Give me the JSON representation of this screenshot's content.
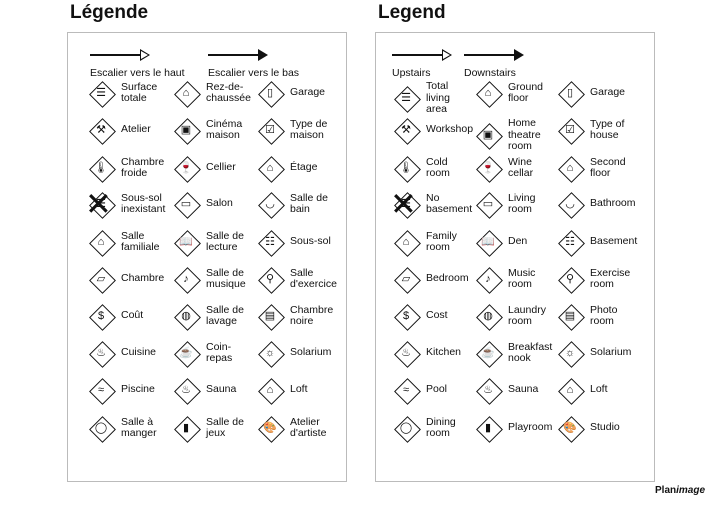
{
  "fr": {
    "title": "Légende",
    "stairs_up": "Escalier vers le haut",
    "stairs_down": "Escalier vers le bas",
    "items": [
      {
        "label": "Surface\ntotale",
        "icon": "total-area-icon",
        "glyph": "☰"
      },
      {
        "label": "Rez-de-\nchaussée",
        "icon": "ground-floor-icon",
        "glyph": "⌂"
      },
      {
        "label": "Garage",
        "icon": "garage-icon",
        "glyph": "▯"
      },
      {
        "label": "Atelier",
        "icon": "hammer-icon",
        "glyph": "⚒"
      },
      {
        "label": "Cinéma\nmaison",
        "icon": "home-theatre-icon",
        "glyph": "▣"
      },
      {
        "label": "Type de\nmaison",
        "icon": "house-type-icon",
        "glyph": "☑"
      },
      {
        "label": "Chambre\nfroide",
        "icon": "thermometer-icon",
        "glyph": "🌡"
      },
      {
        "label": "Cellier",
        "icon": "wine-cellar-icon",
        "glyph": "🍷"
      },
      {
        "label": "Étage",
        "icon": "second-floor-icon",
        "glyph": "⌂"
      },
      {
        "label": "Sous-sol\ninexistant",
        "icon": "no-basement-icon",
        "glyph": "☰",
        "cross": true
      },
      {
        "label": "Salon",
        "icon": "sofa-icon",
        "glyph": "▭"
      },
      {
        "label": "Salle de\nbain",
        "icon": "bathroom-icon",
        "glyph": "◡"
      },
      {
        "label": "Salle\nfamiliale",
        "icon": "family-room-icon",
        "glyph": "⌂"
      },
      {
        "label": "Salle de\nlecture",
        "icon": "book-icon",
        "glyph": "📖"
      },
      {
        "label": "Sous-sol",
        "icon": "basement-icon",
        "glyph": "☷"
      },
      {
        "label": "Chambre",
        "icon": "bed-icon",
        "glyph": "▱"
      },
      {
        "label": "Salle de\nmusique",
        "icon": "music-note-icon",
        "glyph": "♪"
      },
      {
        "label": "Salle\nd'exercice",
        "icon": "exercise-icon",
        "glyph": "⚲"
      },
      {
        "label": "Coût",
        "icon": "dollar-icon",
        "glyph": "$"
      },
      {
        "label": "Salle de\nlavage",
        "icon": "laundry-icon",
        "glyph": "◍"
      },
      {
        "label": "Chambre\nnoire",
        "icon": "photo-room-icon",
        "glyph": "▤"
      },
      {
        "label": "Cuisine",
        "icon": "kitchen-icon",
        "glyph": "♨"
      },
      {
        "label": "Coin-\nrepas",
        "icon": "breakfast-nook-icon",
        "glyph": "☕"
      },
      {
        "label": "Solarium",
        "icon": "sun-icon",
        "glyph": "☼"
      },
      {
        "label": "Piscine",
        "icon": "pool-icon",
        "glyph": "≈"
      },
      {
        "label": "Sauna",
        "icon": "sauna-icon",
        "glyph": "♨"
      },
      {
        "label": "Loft",
        "icon": "loft-icon",
        "glyph": "⌂"
      },
      {
        "label": "Salle à\nmanger",
        "icon": "dining-icon",
        "glyph": "◯"
      },
      {
        "label": "Salle de\njeux",
        "icon": "playroom-icon",
        "glyph": "▮"
      },
      {
        "label": "Atelier\nd'artiste",
        "icon": "palette-icon",
        "glyph": "🎨"
      }
    ]
  },
  "en": {
    "title": "Legend",
    "stairs_up": "Upstairs",
    "stairs_down": "Downstairs",
    "items": [
      {
        "label": "Total\nliving\narea",
        "icon": "total-area-icon",
        "glyph": "☰"
      },
      {
        "label": "Ground\nfloor",
        "icon": "ground-floor-icon",
        "glyph": "⌂"
      },
      {
        "label": "Garage",
        "icon": "garage-icon",
        "glyph": "▯"
      },
      {
        "label": "Workshop",
        "icon": "hammer-icon",
        "glyph": "⚒"
      },
      {
        "label": "Home\ntheatre\nroom",
        "icon": "home-theatre-icon",
        "glyph": "▣"
      },
      {
        "label": "Type of\nhouse",
        "icon": "house-type-icon",
        "glyph": "☑"
      },
      {
        "label": "Cold\nroom",
        "icon": "thermometer-icon",
        "glyph": "🌡"
      },
      {
        "label": "Wine\ncellar",
        "icon": "wine-cellar-icon",
        "glyph": "🍷"
      },
      {
        "label": "Second\nfloor",
        "icon": "second-floor-icon",
        "glyph": "⌂"
      },
      {
        "label": "No\nbasement",
        "icon": "no-basement-icon",
        "glyph": "☰",
        "cross": true
      },
      {
        "label": "Living\nroom",
        "icon": "sofa-icon",
        "glyph": "▭"
      },
      {
        "label": "Bathroom",
        "icon": "bathroom-icon",
        "glyph": "◡"
      },
      {
        "label": "Family\nroom",
        "icon": "family-room-icon",
        "glyph": "⌂"
      },
      {
        "label": "Den",
        "icon": "book-icon",
        "glyph": "📖"
      },
      {
        "label": "Basement",
        "icon": "basement-icon",
        "glyph": "☷"
      },
      {
        "label": "Bedroom",
        "icon": "bed-icon",
        "glyph": "▱"
      },
      {
        "label": "Music\nroom",
        "icon": "music-note-icon",
        "glyph": "♪"
      },
      {
        "label": "Exercise\nroom",
        "icon": "exercise-icon",
        "glyph": "⚲"
      },
      {
        "label": "Cost",
        "icon": "dollar-icon",
        "glyph": "$"
      },
      {
        "label": "Laundry\nroom",
        "icon": "laundry-icon",
        "glyph": "◍"
      },
      {
        "label": "Photo\nroom",
        "icon": "photo-room-icon",
        "glyph": "▤"
      },
      {
        "label": "Kitchen",
        "icon": "kitchen-icon",
        "glyph": "♨"
      },
      {
        "label": "Breakfast\nnook",
        "icon": "breakfast-nook-icon",
        "glyph": "☕"
      },
      {
        "label": "Solarium",
        "icon": "sun-icon",
        "glyph": "☼"
      },
      {
        "label": "Pool",
        "icon": "pool-icon",
        "glyph": "≈"
      },
      {
        "label": "Sauna",
        "icon": "sauna-icon",
        "glyph": "♨"
      },
      {
        "label": "Loft",
        "icon": "loft-icon",
        "glyph": "⌂"
      },
      {
        "label": "Dining\nroom",
        "icon": "dining-icon",
        "glyph": "◯"
      },
      {
        "label": "Playroom",
        "icon": "playroom-icon",
        "glyph": "▮"
      },
      {
        "label": "Studio",
        "icon": "palette-icon",
        "glyph": "🎨"
      }
    ]
  },
  "logo": {
    "text_a": "Plan",
    "text_b": "image"
  }
}
